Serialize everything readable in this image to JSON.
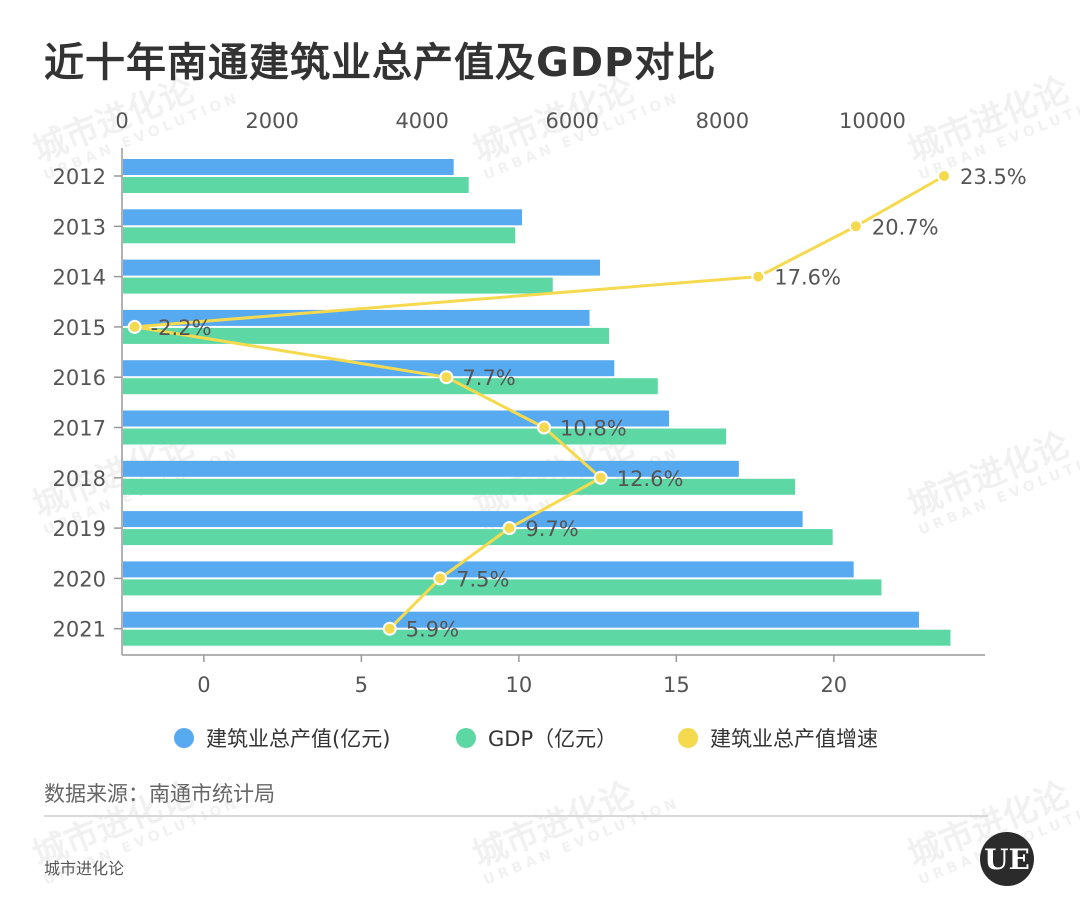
{
  "title": "近十年南通建筑业总产值及GDP对比",
  "source_text": "数据来源：南通市统计局",
  "brand_text": "城市进化论",
  "logo_text": "UE",
  "watermark": {
    "text": "城市进化论",
    "sub": "URBAN EVOLUTION"
  },
  "colors": {
    "construction": "#58aaf0",
    "gdp": "#5dd7a4",
    "growth": "#f5d94e",
    "axis": "#999999",
    "grid_text": "#555555"
  },
  "chart_data": {
    "type": "bar",
    "orientation": "horizontal",
    "title": "近十年南通建筑业总产值及GDP对比",
    "categories": [
      "2012",
      "2013",
      "2014",
      "2015",
      "2016",
      "2017",
      "2018",
      "2019",
      "2020",
      "2021"
    ],
    "series": [
      {
        "name": "建筑业总产值(亿元)",
        "axis": "top",
        "values": [
          4420,
          5330,
          6370,
          6230,
          6560,
          7290,
          8220,
          9070,
          9750,
          10620
        ]
      },
      {
        "name": "GDP（亿元）",
        "axis": "top",
        "values": [
          4620,
          5240,
          5740,
          6490,
          7140,
          8050,
          8970,
          9470,
          10120,
          11040
        ]
      },
      {
        "name": "建筑业总产值增速",
        "type": "line",
        "axis": "bottom",
        "values": [
          23.5,
          20.7,
          17.6,
          -2.2,
          7.7,
          10.8,
          12.6,
          9.7,
          7.5,
          5.9
        ],
        "labels": [
          "23.5%",
          "20.7%",
          "17.6%",
          "-2.2%",
          "7.7%",
          "10.8%",
          "12.6%",
          "9.7%",
          "7.5%",
          "5.9%"
        ]
      }
    ],
    "top_axis": {
      "ticks": [
        "0",
        "2000",
        "4000",
        "6000",
        "8000",
        "10000"
      ],
      "range": [
        0,
        11500
      ]
    },
    "bottom_axis": {
      "ticks": [
        "0",
        "5",
        "10",
        "15",
        "20"
      ],
      "range": [
        -2.6,
        24.8
      ]
    },
    "legend": [
      "建筑业总产值(亿元)",
      "GDP（亿元）",
      "建筑业总产值增速"
    ],
    "legend_position": "bottom",
    "grid": false
  }
}
